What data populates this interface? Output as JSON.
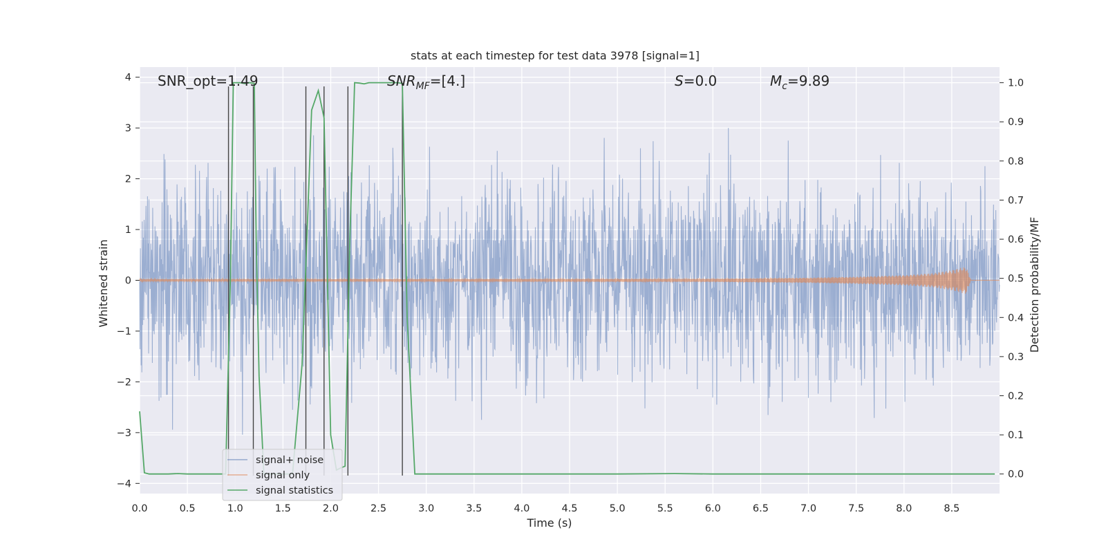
{
  "chart_data": {
    "type": "line",
    "title": "stats at each timestep for test data 3978 [signal=1]",
    "xlabel": "Time (s)",
    "ylabel_left": "Whitened strain",
    "ylabel_right": "Detection probability/MF",
    "xlim": [
      0.0,
      9.0
    ],
    "ylim_left": [
      -4.2,
      4.2
    ],
    "ylim_right": [
      -0.05,
      1.04
    ],
    "x_ticks": [
      "0.0",
      "0.5",
      "1.0",
      "1.5",
      "2.0",
      "2.5",
      "3.0",
      "3.5",
      "4.0",
      "4.5",
      "5.0",
      "5.5",
      "6.0",
      "6.5",
      "7.0",
      "7.5",
      "8.0",
      "8.5"
    ],
    "y_ticks_left": [
      "4",
      "3",
      "2",
      "1",
      "0",
      "−1",
      "−2",
      "−3",
      "−4"
    ],
    "y_ticks_right": [
      "1.0",
      "0.9",
      "0.8",
      "0.7",
      "0.6",
      "0.5",
      "0.4",
      "0.3",
      "0.2",
      "0.1",
      "0.0"
    ],
    "grid": true,
    "legend_position": "lower-left",
    "annotations": {
      "snr_opt": "SNR_opt=1.49",
      "snr_mf": "SNR_MF=[4.]",
      "s_value": "S=0.0",
      "mc_value": "M_c=9.89"
    },
    "series": [
      {
        "name": "signal+ noise",
        "axis": "left",
        "color": "#4c72b0",
        "description_values": "white noise, std ~1, range approx -4 to 4",
        "envelope_upper": [
          2.6,
          2.5,
          2.5,
          2.4,
          2.5,
          2.5,
          2.6,
          2.5,
          2.5,
          2.4,
          2.5,
          2.5,
          2.5,
          2.5,
          2.5,
          2.4,
          2.5,
          2.5
        ],
        "envelope_lower": [
          -2.2,
          -2.3,
          -2.2,
          -2.3,
          -2.2,
          -2.3,
          -2.2,
          -2.2,
          -2.3,
          -2.2,
          -2.3,
          -2.2,
          -2.2,
          -2.3,
          -2.2,
          -2.2,
          -2.3,
          -2.2
        ]
      },
      {
        "name": "signal only",
        "axis": "left",
        "color": "#dd8452",
        "x": [
          0.0,
          6.0,
          7.0,
          7.5,
          8.0,
          8.3,
          8.5,
          8.65,
          8.7,
          9.0
        ],
        "amplitude": [
          0.02,
          0.03,
          0.05,
          0.07,
          0.1,
          0.14,
          0.2,
          0.27,
          0.0,
          0.0
        ]
      },
      {
        "name": "signal statistics",
        "axis": "right",
        "color": "#55a868",
        "x": [
          0.0,
          0.05,
          0.1,
          0.15,
          0.2,
          0.3,
          0.4,
          0.5,
          0.6,
          0.7,
          0.8,
          0.9,
          0.95,
          0.98,
          1.0,
          1.05,
          1.1,
          1.15,
          1.2,
          1.22,
          1.25,
          1.3,
          1.4,
          1.5,
          1.6,
          1.7,
          1.75,
          1.8,
          1.87,
          1.93,
          2.0,
          2.06,
          2.1,
          2.15,
          2.2,
          2.25,
          2.3,
          2.35,
          2.4,
          2.5,
          2.6,
          2.7,
          2.75,
          2.8,
          2.88,
          3.0,
          4.0,
          5.0,
          5.6,
          6.0,
          7.0,
          8.0,
          8.95
        ],
        "values": [
          0.16,
          0.003,
          0.0,
          0.0,
          0.0,
          0.0,
          0.001,
          0.0,
          0.0,
          0.0,
          0.0,
          0.0,
          0.5,
          1.0,
          1.0,
          1.0,
          0.998,
          1.0,
          0.998,
          0.6,
          0.25,
          0.0,
          0.0,
          0.0,
          0.0,
          0.28,
          0.6,
          0.93,
          0.98,
          0.91,
          0.1,
          0.01,
          0.015,
          0.02,
          0.6,
          1.0,
          0.999,
          0.997,
          1.0,
          1.0,
          1.0,
          1.0,
          0.998,
          0.4,
          0.0,
          0.0,
          0.0,
          0.0,
          0.001,
          0.0,
          0.0,
          0.0,
          0.0
        ]
      }
    ],
    "vertical_lines_x": [
      0.93,
      1.19,
      1.74,
      1.93,
      2.18,
      2.75
    ]
  }
}
